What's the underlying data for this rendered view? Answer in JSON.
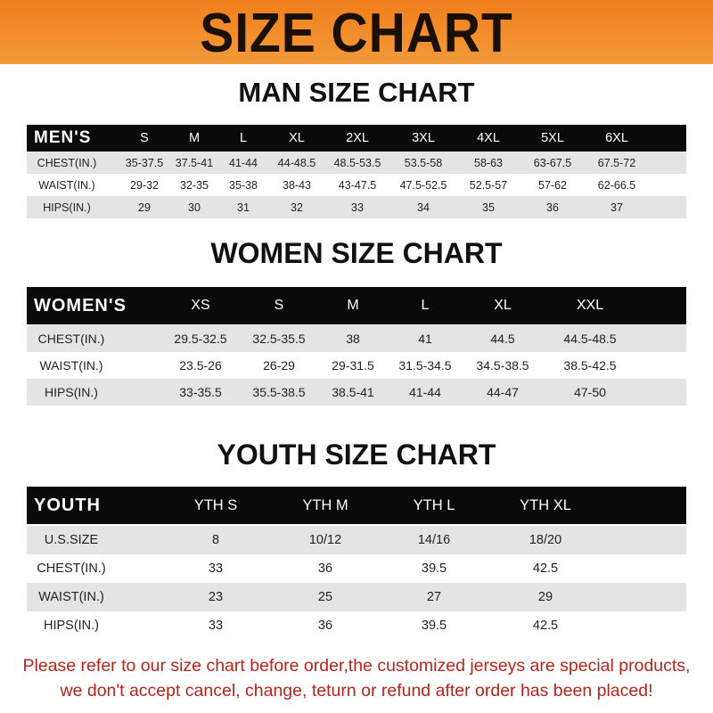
{
  "banner_title": "SIZE CHART",
  "colors": {
    "banner": "#f08a24",
    "header_row": "#0a0a0a",
    "stripe": "#e4e4e4",
    "note": "#b8241c"
  },
  "men": {
    "title": "MAN SIZE CHART",
    "header": "MEN'S",
    "sizes": [
      "S",
      "M",
      "L",
      "XL",
      "2XL",
      "3XL",
      "4XL",
      "5XL",
      "6XL"
    ],
    "rows": [
      {
        "label": "CHEST(IN.)",
        "values": [
          "35-37.5",
          "37.5-41",
          "41-44",
          "44-48.5",
          "48.5-53.5",
          "53.5-58",
          "58-63",
          "63-67.5",
          "67.5-72"
        ]
      },
      {
        "label": "WAIST(IN.)",
        "values": [
          "29-32",
          "32-35",
          "35-38",
          "38-43",
          "43-47.5",
          "47.5-52.5",
          "52.5-57",
          "57-62",
          "62-66.5"
        ]
      },
      {
        "label": "HIPS(IN.)",
        "values": [
          "29",
          "30",
          "31",
          "32",
          "33",
          "34",
          "35",
          "36",
          "37"
        ]
      }
    ]
  },
  "women": {
    "title": "WOMEN SIZE CHART",
    "header": "WOMEN'S",
    "sizes": [
      "XS",
      "S",
      "M",
      "L",
      "XL",
      "XXL"
    ],
    "rows": [
      {
        "label": "CHEST(IN.)",
        "values": [
          "29.5-32.5",
          "32.5-35.5",
          "38",
          "41",
          "44.5",
          "44.5-48.5"
        ]
      },
      {
        "label": "WAIST(IN.)",
        "values": [
          "23.5-26",
          "26-29",
          "29-31.5",
          "31.5-34.5",
          "34.5-38.5",
          "38.5-42.5"
        ]
      },
      {
        "label": "HIPS(IN.)",
        "values": [
          "33-35.5",
          "35.5-38.5",
          "38.5-41",
          "41-44",
          "44-47",
          "47-50"
        ]
      }
    ]
  },
  "youth": {
    "title": "YOUTH SIZE CHART",
    "header": "YOUTH",
    "sizes": [
      "YTH S",
      "YTH M",
      "YTH L",
      "YTH XL"
    ],
    "rows": [
      {
        "label": "U.S.SIZE",
        "values": [
          "8",
          "10/12",
          "14/16",
          "18/20"
        ]
      },
      {
        "label": "CHEST(IN.)",
        "values": [
          "33",
          "36",
          "39.5",
          "42.5"
        ]
      },
      {
        "label": "WAIST(IN.)",
        "values": [
          "23",
          "25",
          "27",
          "29"
        ]
      },
      {
        "label": "HIPS(IN.)",
        "values": [
          "33",
          "36",
          "39.5",
          "42.5"
        ]
      }
    ]
  },
  "notice": [
    "Please refer to our size chart before order,the customized jerseys are special products,",
    "we don't accept cancel, change, teturn or refund after order has been placed!"
  ]
}
